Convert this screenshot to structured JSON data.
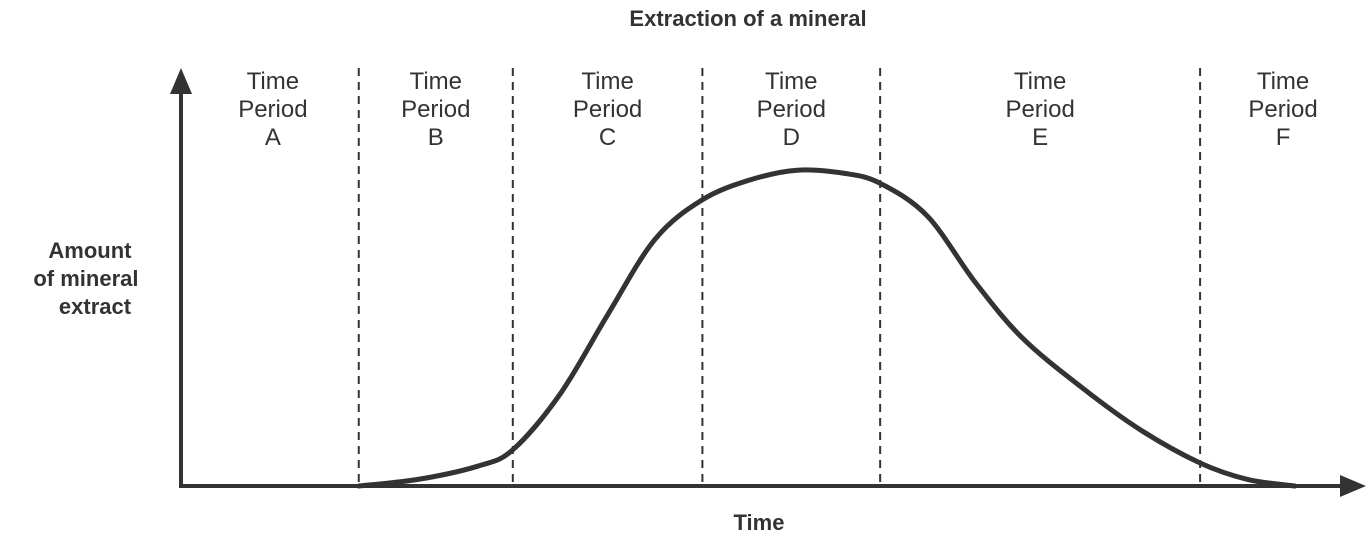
{
  "chart_data": {
    "type": "line",
    "title": "Extraction of a mineral",
    "xlabel": "Time",
    "ylabel": [
      "Amount",
      "of mineral",
      "extract"
    ],
    "xlim": [
      0,
      100
    ],
    "ylim": [
      0,
      100
    ],
    "period_word_1": "Time",
    "period_word_2": "Period",
    "periods": [
      {
        "letter": "A",
        "start": 0,
        "end": 15
      },
      {
        "letter": "B",
        "start": 15,
        "end": 28
      },
      {
        "letter": "C",
        "start": 28,
        "end": 44
      },
      {
        "letter": "D",
        "start": 44,
        "end": 59
      },
      {
        "letter": "E",
        "start": 59,
        "end": 86
      },
      {
        "letter": "F",
        "start": 86,
        "end": 100
      }
    ],
    "series": [
      {
        "name": "Amount of mineral extract",
        "x": [
          15,
          20,
          25,
          28,
          32,
          36,
          40,
          44,
          48,
          52,
          56,
          59,
          63,
          67,
          71,
          76,
          81,
          86,
          90,
          94
        ],
        "y": [
          0,
          2,
          6,
          11,
          28,
          52,
          75,
          87,
          93,
          96,
          95,
          92,
          82,
          62,
          45,
          30,
          17,
          7,
          2,
          0
        ]
      }
    ]
  }
}
